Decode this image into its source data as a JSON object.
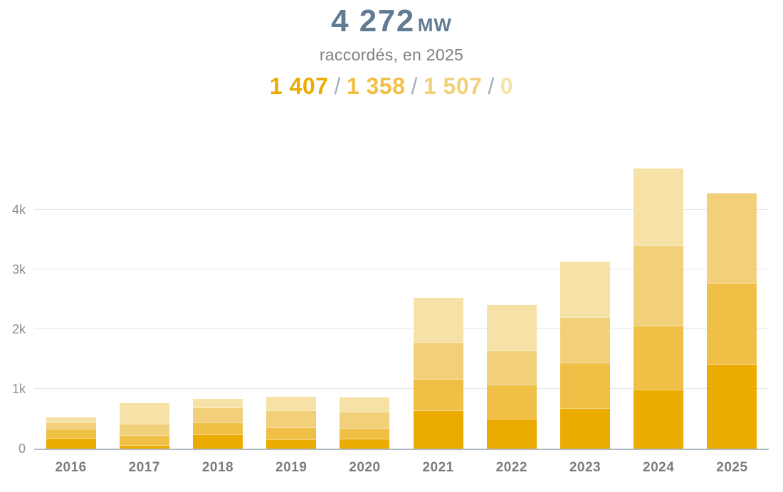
{
  "header": {
    "total_value": "4 272",
    "total_unit": "MW",
    "subtitle": "raccordés, en 2025",
    "breakdown": {
      "values": [
        "1 407",
        "1 358",
        "1 507",
        "0"
      ],
      "separator": "/"
    }
  },
  "colors": {
    "title": "#617b92",
    "subtitle": "#7f7f7f",
    "axis_label": "#8f8f8f",
    "year_label": "#7c7c7c",
    "gridline": "#e1e4e7",
    "baseline": "#aeb9c2",
    "separator": "#a3afb9",
    "segments": [
      "#ebab00",
      "#efc045",
      "#f2d07a",
      "#f6e2a7"
    ]
  },
  "chart_data": {
    "type": "bar",
    "stacked": true,
    "unit": "MW",
    "title": "4 272 MW raccordés, en 2025",
    "categories": [
      "2016",
      "2017",
      "2018",
      "2019",
      "2020",
      "2021",
      "2022",
      "2023",
      "2024",
      "2025"
    ],
    "series": [
      {
        "name": "segment-1-darkest",
        "color": "#ebab00",
        "values": [
          165,
          50,
          225,
          145,
          160,
          630,
          490,
          670,
          980,
          1407
        ]
      },
      {
        "name": "segment-2-medium",
        "color": "#efc045",
        "values": [
          155,
          170,
          205,
          205,
          170,
          530,
          570,
          755,
          1070,
          1358
        ]
      },
      {
        "name": "segment-3-light",
        "color": "#f2d07a",
        "values": [
          110,
          190,
          250,
          280,
          280,
          610,
          570,
          765,
          1340,
          1507
        ]
      },
      {
        "name": "segment-4-lightest",
        "color": "#f6e2a7",
        "values": [
          100,
          350,
          155,
          240,
          250,
          760,
          770,
          940,
          1300,
          0
        ]
      }
    ],
    "totals": [
      530,
      760,
      835,
      870,
      860,
      2530,
      2400,
      3130,
      4690,
      4272
    ],
    "yticks": [
      "0",
      "1k",
      "2k",
      "3k",
      "4k"
    ],
    "ytick_values": [
      0,
      1000,
      2000,
      3000,
      4000
    ],
    "ylim": [
      0,
      5000
    ],
    "xlabel": "",
    "ylabel": "",
    "grid": true,
    "legend": false
  }
}
